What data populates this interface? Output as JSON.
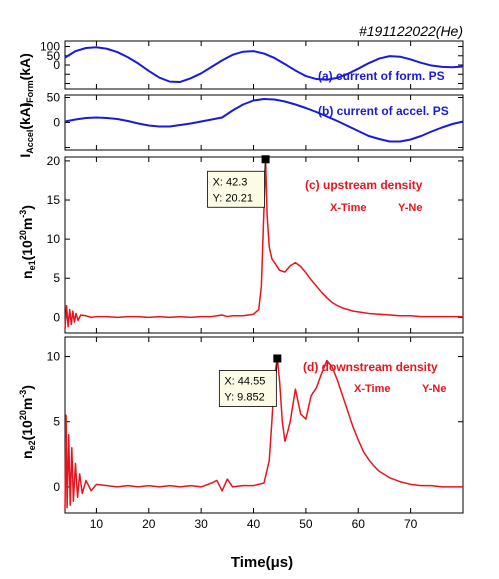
{
  "shot_label": "#191122022(He)",
  "xlabel": "Time(μs)",
  "colors": {
    "blue": "#1a1adc",
    "red": "#e8141d",
    "axis": "#000000",
    "tip_bg": "#fbfbe6"
  },
  "chart_data": [
    {
      "type": "line",
      "panel": "a",
      "annotation": "(a) current of form. PS",
      "ylabel": "I_Form(kA)",
      "xlim": [
        4,
        80
      ],
      "ylim": [
        -130,
        130
      ],
      "yticks": [
        -100,
        -50,
        0,
        50,
        100
      ],
      "ytick_labels": [
        "",
        "",
        "0",
        "50",
        "100"
      ],
      "xticks": [
        10,
        20,
        30,
        40,
        50,
        60,
        70
      ],
      "series": [
        {
          "color": "#1a1adc",
          "x": [
            4,
            6,
            8,
            10,
            12,
            14,
            16,
            18,
            20,
            22,
            24,
            26,
            28,
            30,
            32,
            34,
            36,
            38,
            40,
            42,
            44,
            46,
            48,
            50,
            52,
            54,
            56,
            58,
            60,
            62,
            64,
            66,
            68,
            70,
            72,
            74,
            76,
            78,
            80
          ],
          "y": [
            40,
            75,
            92,
            96,
            88,
            70,
            42,
            8,
            -32,
            -68,
            -90,
            -92,
            -72,
            -45,
            -10,
            25,
            55,
            72,
            75,
            62,
            38,
            5,
            -30,
            -60,
            -76,
            -80,
            -70,
            -48,
            -20,
            10,
            35,
            48,
            45,
            30,
            12,
            -3,
            -10,
            -12,
            -8
          ]
        }
      ]
    },
    {
      "type": "line",
      "panel": "b",
      "annotation": "(b) current of accel. PS",
      "ylabel": "I_Accel(kA)",
      "xlim": [
        4,
        80
      ],
      "ylim": [
        -55,
        55
      ],
      "yticks": [
        -50,
        0,
        50
      ],
      "ytick_labels": [
        "",
        "0",
        "50"
      ],
      "xticks": [
        10,
        20,
        30,
        40,
        50,
        60,
        70
      ],
      "series": [
        {
          "color": "#1a1adc",
          "x": [
            4,
            6,
            8,
            10,
            12,
            14,
            16,
            18,
            20,
            22,
            24,
            26,
            28,
            30,
            32,
            34,
            36,
            38,
            40,
            42,
            44,
            46,
            48,
            50,
            52,
            54,
            56,
            58,
            60,
            62,
            64,
            66,
            68,
            70,
            72,
            74,
            76,
            78,
            80
          ],
          "y": [
            2,
            6,
            9,
            10,
            9,
            7,
            3,
            -2,
            -6,
            -8,
            -8,
            -5,
            -2,
            2,
            6,
            10,
            24,
            36,
            44,
            47,
            46,
            42,
            36,
            29,
            21,
            12,
            3,
            -7,
            -17,
            -27,
            -33,
            -38,
            -38,
            -34,
            -27,
            -18,
            -10,
            -3,
            2
          ]
        }
      ]
    },
    {
      "type": "line",
      "panel": "c",
      "annotation": "(c) upstream density",
      "legend_x": "X-Time",
      "legend_y": "Y-Ne",
      "ylabel": "n_e1(10^20 m^-3)",
      "xlim": [
        4,
        80
      ],
      "ylim": [
        -2,
        20.5
      ],
      "yticks": [
        0,
        5,
        10,
        15,
        20
      ],
      "xticks": [
        10,
        20,
        30,
        40,
        50,
        60,
        70
      ],
      "datatip": {
        "x": 42.3,
        "y": 20.21,
        "label_x": "X: 42.3",
        "label_y": "Y: 20.21"
      },
      "series": [
        {
          "color": "#e8141d",
          "x": [
            4,
            4.3,
            4.6,
            4.9,
            5.2,
            5.5,
            5.8,
            6.1,
            6.5,
            7,
            8,
            9,
            10,
            12,
            14,
            16,
            18,
            20,
            22,
            24,
            26,
            28,
            30,
            32,
            34,
            35,
            36,
            38,
            40,
            41,
            41.5,
            42,
            42.3,
            42.6,
            43,
            43.5,
            44,
            45,
            46,
            47,
            48,
            49,
            50,
            51,
            52,
            53,
            54,
            55,
            56,
            57,
            58,
            59,
            60,
            62,
            64,
            66,
            68,
            70,
            72,
            74,
            76,
            78,
            80
          ],
          "y": [
            -1.5,
            1.5,
            -1.2,
            1,
            -0.9,
            0.8,
            -0.6,
            0.5,
            -0.4,
            0.3,
            0.2,
            0,
            0.1,
            0.1,
            0,
            0.1,
            0.1,
            0,
            0.1,
            0,
            0.1,
            0,
            0.1,
            0.1,
            0.3,
            0.1,
            0.2,
            0.2,
            0.4,
            1,
            4,
            14,
            20.21,
            13,
            9,
            7.5,
            7,
            6,
            5.8,
            6.6,
            7,
            6.5,
            5.7,
            4.8,
            4,
            3.2,
            2.5,
            1.9,
            1.5,
            1.2,
            1,
            0.8,
            0.7,
            0.5,
            0.4,
            0.3,
            0.2,
            0.2,
            0.1,
            0.1,
            0.1,
            0.1,
            0.1
          ]
        }
      ]
    },
    {
      "type": "line",
      "panel": "d",
      "annotation": "(d) downstream density",
      "legend_x": "X-Time",
      "legend_y": "Y-Ne",
      "ylabel": "n_e2(10^20 m^-3)",
      "xlim": [
        4,
        80
      ],
      "ylim": [
        -2,
        11.5
      ],
      "yticks": [
        0,
        5,
        10
      ],
      "xticks": [
        10,
        20,
        30,
        40,
        50,
        60,
        70
      ],
      "datatip": {
        "x": 44.55,
        "y": 9.852,
        "label_x": "X: 44.55",
        "label_y": "Y: 9.852"
      },
      "series": [
        {
          "color": "#e8141d",
          "x": [
            4,
            4.2,
            4.4,
            4.7,
            5,
            5.3,
            5.6,
            6,
            6.4,
            6.8,
            7.3,
            8,
            9,
            10,
            12,
            14,
            16,
            18,
            20,
            22,
            24,
            26,
            28,
            30,
            32,
            33,
            34,
            35,
            36,
            38,
            40,
            42,
            43,
            43.5,
            44,
            44.55,
            45,
            45.5,
            46,
            46.5,
            47,
            48,
            49,
            50,
            51,
            52,
            53,
            54,
            55,
            56,
            57,
            58,
            59,
            60,
            61,
            62,
            63,
            64,
            66,
            68,
            70,
            72,
            74,
            76,
            78,
            80
          ],
          "y": [
            -1.8,
            5.5,
            -1.6,
            4,
            -1.4,
            3,
            -1.1,
            1.8,
            -0.8,
            1,
            -0.5,
            0.5,
            -0.3,
            0.2,
            0.1,
            0,
            0.1,
            0,
            0.1,
            0,
            0.1,
            0,
            0.1,
            0,
            0.3,
            0.5,
            -0.3,
            0.6,
            0,
            0.1,
            0.1,
            0.3,
            2,
            5,
            8.5,
            9.852,
            8,
            5,
            3.5,
            4.2,
            5,
            7.5,
            5.6,
            5.2,
            7,
            7.6,
            8.7,
            9.7,
            9.2,
            8.2,
            7,
            5.8,
            4.6,
            3.6,
            2.7,
            2.1,
            1.6,
            1.2,
            0.7,
            0.4,
            0.2,
            0.1,
            0.1,
            0,
            0,
            0
          ]
        }
      ]
    }
  ]
}
